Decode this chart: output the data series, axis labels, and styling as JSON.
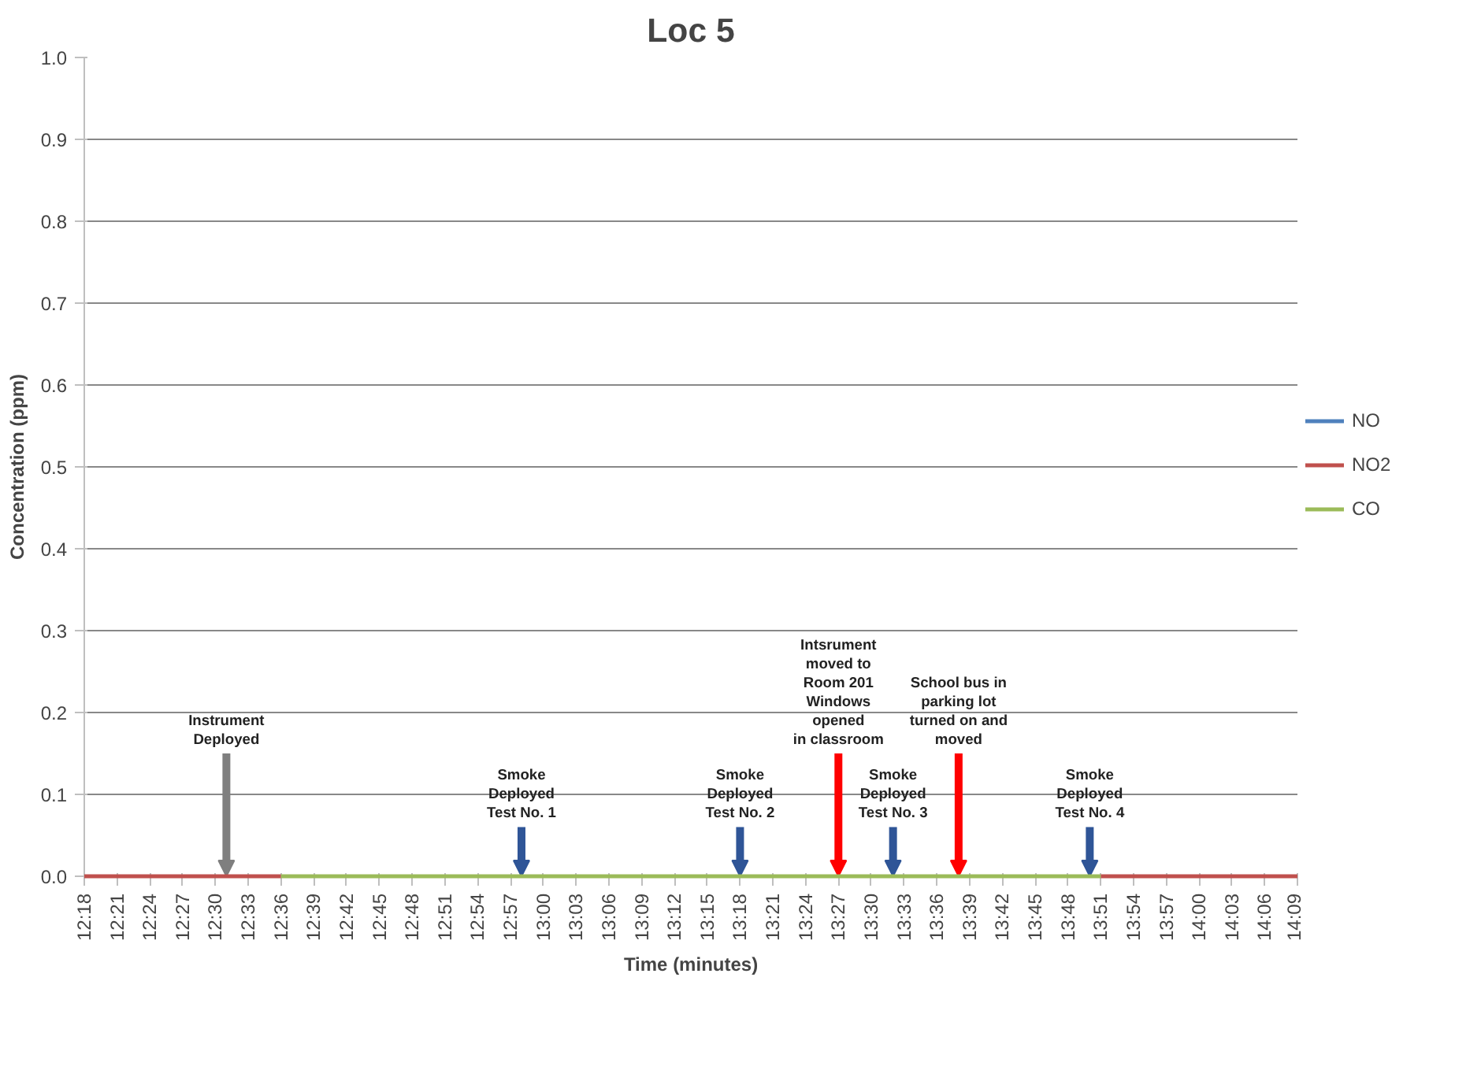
{
  "chart_data": {
    "type": "line",
    "title": "Loc 5",
    "xlabel": "Time (minutes)",
    "ylabel": "Concentration (ppm)",
    "series": [
      {
        "name": "NO",
        "color": "#4f81bd"
      },
      {
        "name": "NO2",
        "color": "#c0504d",
        "x": [
          12.3,
          12.6,
          12.61,
          13.85,
          14.15
        ],
        "values": [
          0,
          0,
          null,
          0,
          0
        ]
      },
      {
        "name": "CO",
        "color": "#9bbb59",
        "x": [
          12.6,
          13.85
        ],
        "values": [
          0,
          0
        ]
      }
    ],
    "xlim": [
      12.3,
      14.15
    ],
    "xticks": [
      {
        "value": 12.3,
        "label": "12:18"
      },
      {
        "value": 12.35,
        "label": "12:21"
      },
      {
        "value": 12.4,
        "label": "12:24"
      },
      {
        "value": 12.45,
        "label": "12:27"
      },
      {
        "value": 12.5,
        "label": "12:30"
      },
      {
        "value": 12.55,
        "label": "12:33"
      },
      {
        "value": 12.6,
        "label": "12:36"
      },
      {
        "value": 12.65,
        "label": "12:39"
      },
      {
        "value": 12.7,
        "label": "12:42"
      },
      {
        "value": 12.75,
        "label": "12:45"
      },
      {
        "value": 12.8,
        "label": "12:48"
      },
      {
        "value": 12.85,
        "label": "12:51"
      },
      {
        "value": 12.9,
        "label": "12:54"
      },
      {
        "value": 12.95,
        "label": "12:57"
      },
      {
        "value": 13.0,
        "label": "13:00"
      },
      {
        "value": 13.05,
        "label": "13:03"
      },
      {
        "value": 13.1,
        "label": "13:06"
      },
      {
        "value": 13.15,
        "label": "13:09"
      },
      {
        "value": 13.2,
        "label": "13:12"
      },
      {
        "value": 13.25,
        "label": "13:15"
      },
      {
        "value": 13.3,
        "label": "13:18"
      },
      {
        "value": 13.35,
        "label": "13:21"
      },
      {
        "value": 13.4,
        "label": "13:24"
      },
      {
        "value": 13.45,
        "label": "13:27"
      },
      {
        "value": 13.5,
        "label": "13:30"
      },
      {
        "value": 13.55,
        "label": "13:33"
      },
      {
        "value": 13.6,
        "label": "13:36"
      },
      {
        "value": 13.65,
        "label": "13:39"
      },
      {
        "value": 13.7,
        "label": "13:42"
      },
      {
        "value": 13.75,
        "label": "13:45"
      },
      {
        "value": 13.8,
        "label": "13:48"
      },
      {
        "value": 13.85,
        "label": "13:51"
      },
      {
        "value": 13.9,
        "label": "13:54"
      },
      {
        "value": 13.95,
        "label": "13:57"
      },
      {
        "value": 14.0,
        "label": "14:00"
      },
      {
        "value": 14.05,
        "label": "14:03"
      },
      {
        "value": 14.1,
        "label": "14:06"
      },
      {
        "value": 14.15,
        "label": "14:09"
      }
    ],
    "ylim": [
      0,
      1
    ],
    "yticks": [
      {
        "value": 0,
        "label": "0.0"
      },
      {
        "value": 0.1,
        "label": "0.1"
      },
      {
        "value": 0.2,
        "label": "0.2"
      },
      {
        "value": 0.3,
        "label": "0.3"
      },
      {
        "value": 0.4,
        "label": "0.4"
      },
      {
        "value": 0.5,
        "label": "0.5"
      },
      {
        "value": 0.6,
        "label": "0.6"
      },
      {
        "value": 0.7,
        "label": "0.7"
      },
      {
        "value": 0.8,
        "label": "0.8"
      },
      {
        "value": 0.9,
        "label": "0.9"
      },
      {
        "value": 1.0,
        "label": "1.0"
      }
    ],
    "grid": "y",
    "legend": "right",
    "line_style": "solid",
    "marker": "none",
    "annotations": [
      {
        "text": "Instrument\nDeployed",
        "x": 12.5167,
        "y": 0
      },
      {
        "text": "Smoke\nDeployed\nTest No. 1",
        "x": 12.9667,
        "y": 0
      },
      {
        "text": "Smoke\nDeployed\nTest No. 2",
        "x": 13.3,
        "y": 0
      },
      {
        "text": "Intsrument\nmoved to\nRoom 201\nWindows\nopened\nin classroom",
        "x": 13.45,
        "y": 0
      },
      {
        "text": "Smoke\nDeployed\nTest No. 3",
        "x": 13.5333,
        "y": 0
      },
      {
        "text": "School bus in\nparking lot\nturned on and\nmoved",
        "x": 13.6333,
        "y": 0
      },
      {
        "text": "Smoke\nDeployed\nTest No. 4",
        "x": 13.8333,
        "y": 0
      }
    ]
  }
}
